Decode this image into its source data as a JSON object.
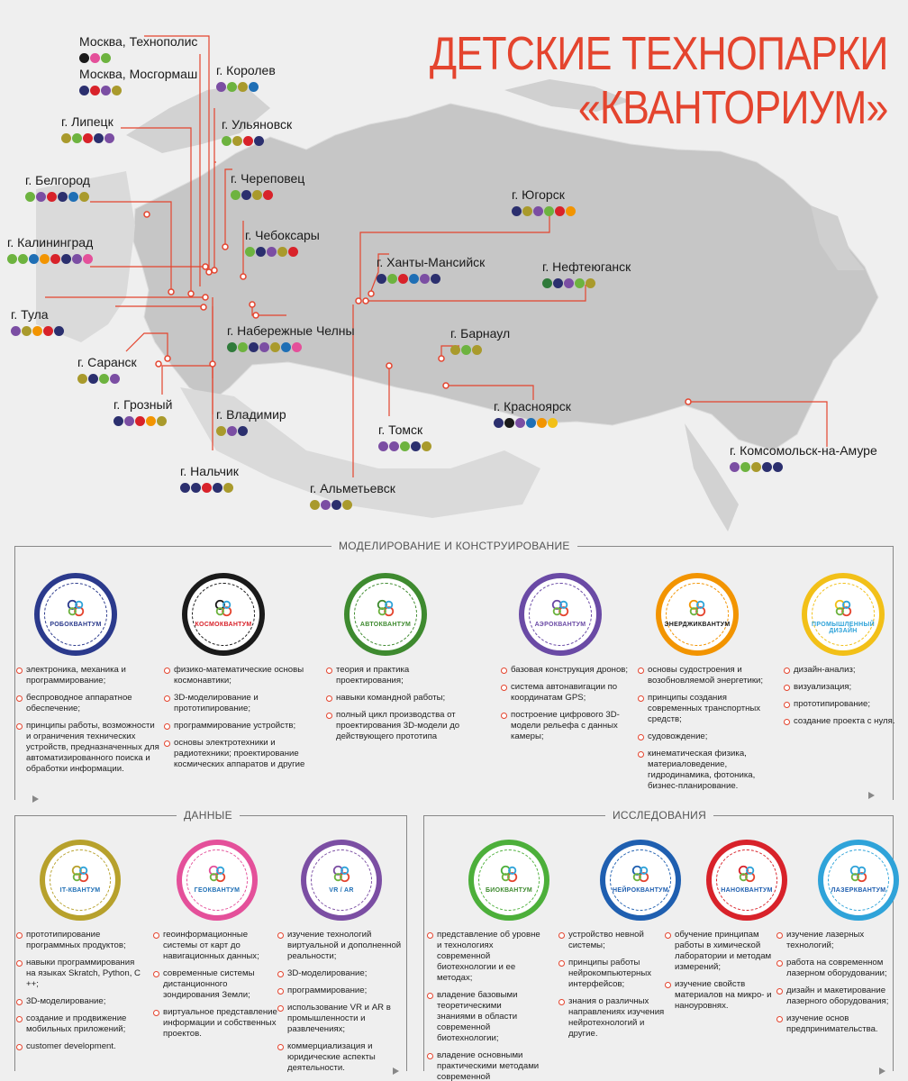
{
  "title": {
    "line1": "ДЕТСКИЕ ТЕХНОПАРКИ",
    "line2": "«КВАНТОРИУМ»"
  },
  "colors": {
    "accent": "#e4442e",
    "land": "#c4c4c4",
    "bg": "#efefef",
    "line": "#e4442e"
  },
  "dot_colors": {
    "navy": "#2b2f6e",
    "pink": "#e4509a",
    "green": "#6db33f",
    "olive": "#a99a2c",
    "red": "#d8222a",
    "purple": "#7b4ea3",
    "blue": "#1f6fb5",
    "orange": "#f29400",
    "black": "#1a1a1a",
    "yellow": "#f2c018",
    "cyan": "#2fa3d9",
    "dkgreen": "#2f7a3a"
  },
  "cities": [
    {
      "name": "Москва, Технополис",
      "dots": [
        "black",
        "pink",
        "green"
      ]
    },
    {
      "name": "Москва, Мосгормаш",
      "dots": [
        "navy",
        "red",
        "purple",
        "olive"
      ]
    },
    {
      "name": "г. Королев",
      "dots": [
        "purple",
        "green",
        "olive",
        "blue"
      ]
    },
    {
      "name": "г. Ульяновск",
      "dots": [
        "green",
        "olive",
        "red",
        "navy"
      ]
    },
    {
      "name": "г. Липецк",
      "dots": [
        "olive",
        "green",
        "red",
        "navy",
        "purple"
      ]
    },
    {
      "name": "г. Череповец",
      "dots": [
        "green",
        "navy",
        "olive",
        "red"
      ]
    },
    {
      "name": "г. Белгород",
      "dots": [
        "green",
        "purple",
        "red",
        "navy",
        "blue",
        "olive"
      ]
    },
    {
      "name": "г. Чебоксары",
      "dots": [
        "green",
        "navy",
        "purple",
        "olive",
        "red"
      ]
    },
    {
      "name": "г. Калининград",
      "dots": [
        "green",
        "green",
        "blue",
        "orange",
        "red",
        "navy",
        "purple",
        "pink"
      ]
    },
    {
      "name": "г. Югорск",
      "dots": [
        "navy",
        "olive",
        "purple",
        "green",
        "red",
        "orange"
      ]
    },
    {
      "name": "г. Ханты-Мансийск",
      "dots": [
        "navy",
        "green",
        "red",
        "blue",
        "purple",
        "navy"
      ]
    },
    {
      "name": "г. Нефтеюганск",
      "dots": [
        "dkgreen",
        "navy",
        "purple",
        "green",
        "olive"
      ]
    },
    {
      "name": "г. Тула",
      "dots": [
        "purple",
        "olive",
        "orange",
        "red",
        "navy"
      ]
    },
    {
      "name": "г. Набережные Челны",
      "dots": [
        "dkgreen",
        "green",
        "navy",
        "purple",
        "olive",
        "blue",
        "pink"
      ]
    },
    {
      "name": "г. Барнаул",
      "dots": [
        "olive",
        "green",
        "olive"
      ]
    },
    {
      "name": "г. Саранск",
      "dots": [
        "olive",
        "navy",
        "green",
        "purple"
      ]
    },
    {
      "name": "г. Красноярск",
      "dots": [
        "navy",
        "black",
        "purple",
        "blue",
        "orange",
        "yellow"
      ]
    },
    {
      "name": "г. Грозный",
      "dots": [
        "navy",
        "purple",
        "red",
        "orange",
        "olive"
      ]
    },
    {
      "name": "г. Владимир",
      "dots": [
        "olive",
        "purple",
        "navy"
      ]
    },
    {
      "name": "г. Томск",
      "dots": [
        "purple",
        "purple",
        "green",
        "navy",
        "olive"
      ]
    },
    {
      "name": "г. Комсомольск-на-Амуре",
      "dots": [
        "purple",
        "green",
        "olive",
        "navy",
        "navy"
      ]
    },
    {
      "name": "г. Нальчик",
      "dots": [
        "navy",
        "navy",
        "red",
        "navy",
        "olive"
      ]
    },
    {
      "name": "г. Альметьевск",
      "dots": [
        "olive",
        "purple",
        "navy",
        "olive"
      ]
    }
  ],
  "sections": {
    "modeling": {
      "title": "МОДЕЛИРОВАНИЕ И КОНСТРУИРОВАНИЕ",
      "items": [
        {
          "label": "РОБОКВАНТУМ",
          "color": "#2b3a8c",
          "label_color": "#2b3a8c",
          "icon": "robo-quantum-icon",
          "bullets": [
            "электроника, механика и программирование;",
            "беспроводное аппаратное обеспечение;",
            "принципы работы, возможности и ограничения технических устройств, предназначенных для автоматизированного поиска и обработки информации."
          ]
        },
        {
          "label": "КОСМОКВАНТУМ",
          "color": "#1a1a1a",
          "label_color": "#d8222a",
          "icon": "cosmo-quantum-icon",
          "bullets": [
            "физико-математические основы космонавтики;",
            "3D-моделирование и прототипирование;",
            "программирование устройств;",
            "основы электротехники и радиотехники; проектирование космических аппаратов и другие"
          ]
        },
        {
          "label": "АВТОКВАНТУМ",
          "color": "#3e8a2f",
          "label_color": "#3e8a2f",
          "icon": "auto-quantum-icon",
          "bullets": [
            "теория и практика проектирования;",
            "навыки командной работы;",
            "полный цикл производства от проектирования 3D-модели до действующего прототипа"
          ]
        },
        {
          "label": "АЭРОКВАНТУМ",
          "color": "#6a4aa5",
          "label_color": "#6a4aa5",
          "icon": "aero-quantum-icon",
          "bullets": [
            "базовая конструкция дронов;",
            "система автонавигации по координатам GPS;",
            "построение цифрового 3D-модели рельефа с данных камеры;"
          ]
        },
        {
          "label": "ЭНЕРДЖИКВАНТУМ",
          "color": "#f29400",
          "label_color": "#1a1a1a",
          "icon": "energy-quantum-icon",
          "bullets": [
            "основы судостроения и возобновляемой энергетики;",
            "принципы создания современных транспортных средств;",
            "судовождение;",
            "кинематическая физика, материаловедение, гидродинамика, фотоника, бизнес-планирование."
          ]
        },
        {
          "label": "ПРОМЫШЛЕННЫЙ ДИЗАЙН",
          "color": "#f2c018",
          "label_color": "#2fa3d9",
          "icon": "design-quantum-icon",
          "bullets": [
            "дизайн-анализ;",
            "визуализация;",
            "прототипирование;",
            "создание проекта с нуля."
          ]
        }
      ]
    },
    "data": {
      "title": "ДАННЫЕ",
      "items": [
        {
          "label": "IT-КВАНТУМ",
          "color": "#b7a12c",
          "label_color": "#1f6fb5",
          "icon": "it-quantum-icon",
          "bullets": [
            "прототипирование программных продуктов;",
            "навыки программирования на языках Skratch, Python, C ++;",
            "3D-моделирование;",
            "создание и продвижение мобильных приложений;",
            "customer development."
          ]
        },
        {
          "label": "ГЕОКВАНТУМ",
          "color": "#e4509a",
          "label_color": "#1f6fb5",
          "icon": "geo-quantum-icon",
          "bullets": [
            "геоинформационные системы от карт до навигационных данных;",
            "современные системы дистанционного зондирования Земли;",
            "виртуальное представление информации и собственных проектов."
          ]
        },
        {
          "label": "VR / AR",
          "color": "#7b4ea3",
          "label_color": "#1f6fb5",
          "icon": "vrar-quantum-icon",
          "bullets": [
            "изучение технологий виртуальной и дополненной реальности;",
            "3D-моделирование;",
            "программирование;",
            "использование VR и AR в промышленности и развлечениях;",
            "коммерциализация и юридические аспекты деятельности."
          ]
        }
      ]
    },
    "research": {
      "title": "ИССЛЕДОВАНИЯ",
      "items": [
        {
          "label": "БИОКВАНТУМ",
          "color": "#4caf3a",
          "label_color": "#3e8a2f",
          "icon": "bio-quantum-icon",
          "bullets": [
            "представление об уровне и технологиях современной биотехнологии и ее методах;",
            "владение базовыми теоретическими знаниями в области современной биотехнологии;",
            "владение основными практическими методами современной биотехнологии."
          ]
        },
        {
          "label": "НЕЙРОКВАНТУМ",
          "color": "#1f5fb0",
          "label_color": "#1f5fb0",
          "icon": "neuro-quantum-icon",
          "bullets": [
            "устройство невной системы;",
            "принципы работы нейрокомпьютерных интерфейсов;",
            "знания о различных направлениях изучения нейротехнологий и другие."
          ]
        },
        {
          "label": "НАНОКВАНТУМ",
          "color": "#d8222a",
          "label_color": "#1f5fb0",
          "icon": "nano-quantum-icon",
          "bullets": [
            "обучение принципам работы в химической лаборатории и методам измерений;",
            "изучение свойств материалов на микро- и наноуровнях."
          ]
        },
        {
          "label": "ЛАЗЕРКВАНТУМ",
          "color": "#2fa3d9",
          "label_color": "#1f5fb0",
          "icon": "laser-quantum-icon",
          "bullets": [
            "изучение лазерных технологий;",
            "работа на современном лазерном оборудовании;",
            "дизайн и макетирование лазерного оборудования;",
            "изучение основ предпринимательства."
          ]
        }
      ]
    }
  }
}
